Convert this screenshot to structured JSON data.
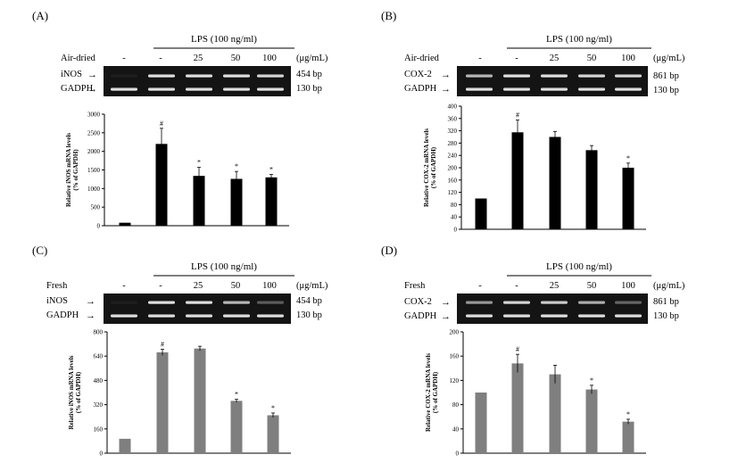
{
  "lps_label": "LPS (100 ng/ml)",
  "unit_label": "(μg/mL)",
  "dose_labels": [
    "-",
    "-",
    "25",
    "50",
    "100"
  ],
  "loading_control": "GADPH",
  "loading_bp": "130 bp",
  "colors": {
    "black_bar": "#000000",
    "gray_bar": "#7f7f7f",
    "gel_bg": "#141414"
  },
  "panels": [
    {
      "label": "(A)",
      "condition": "Air-dried",
      "gene": "iNOS",
      "gene_bp": "454 bp",
      "band_intensity": [
        0.05,
        1.0,
        1.0,
        1.0,
        0.95
      ]
    },
    {
      "label": "(B)",
      "condition": "Air-dried",
      "gene": "COX-2",
      "gene_bp": "861 bp",
      "band_intensity": [
        0.8,
        1.0,
        1.0,
        0.95,
        0.95
      ]
    },
    {
      "label": "(C)",
      "condition": "Fresh",
      "gene": "iNOS",
      "gene_bp": "454 bp",
      "band_intensity": [
        0.05,
        1.0,
        1.0,
        0.8,
        0.35
      ]
    },
    {
      "label": "(D)",
      "condition": "Fresh",
      "gene": "COX-2",
      "gene_bp": "861 bp",
      "band_intensity": [
        0.65,
        0.95,
        0.9,
        0.75,
        0.4
      ]
    }
  ],
  "chart_data": [
    {
      "type": "bar",
      "ylabel": "Relative iNOS mRNA levels (% of GAPDH)",
      "ylim": [
        0,
        3000
      ],
      "yticks": [
        "0",
        "500",
        "1000",
        "1500",
        "2000",
        "2500",
        "3000"
      ],
      "ytick_values": [
        0,
        500,
        1000,
        1500,
        2000,
        2500,
        3000
      ],
      "values": [
        80,
        2200,
        1340,
        1260,
        1300
      ],
      "errors": [
        0,
        420,
        230,
        200,
        80
      ],
      "marks": [
        "",
        "#",
        "*",
        "*",
        "*"
      ],
      "bar_color": "#000000"
    },
    {
      "type": "bar",
      "ylabel": "Relative COX-2 mRNA levels (% of GAPDH)",
      "ylim": [
        0,
        400
      ],
      "yticks": [
        "0",
        "40",
        "80",
        "120",
        "160",
        "200",
        "240",
        "280",
        "320",
        "360",
        "400"
      ],
      "ytick_values": [
        0,
        40,
        80,
        120,
        160,
        200,
        240,
        280,
        320,
        360,
        400
      ],
      "values": [
        100,
        315,
        300,
        257,
        200
      ],
      "errors": [
        0,
        40,
        18,
        15,
        15
      ],
      "marks": [
        "",
        "#",
        "",
        "",
        "*"
      ],
      "bar_color": "#000000"
    },
    {
      "type": "bar",
      "ylabel": "Relative iNOS mRNA levels (% of GAPDH)",
      "ylim": [
        0,
        800
      ],
      "yticks": [
        "0",
        "160",
        "320",
        "480",
        "640",
        "800"
      ],
      "ytick_values": [
        0,
        160,
        320,
        480,
        640,
        800
      ],
      "values": [
        95,
        665,
        690,
        345,
        250
      ],
      "errors": [
        0,
        20,
        15,
        10,
        15
      ],
      "marks": [
        "",
        "#",
        "",
        "*",
        "*"
      ],
      "bar_color": "#7f7f7f"
    },
    {
      "type": "bar",
      "ylabel": "Relative COX-2 mRNA levels (% of GAPDH)",
      "ylim": [
        0,
        200
      ],
      "yticks": [
        "0",
        "40",
        "80",
        "120",
        "160",
        "200"
      ],
      "ytick_values": [
        0,
        40,
        80,
        120,
        160,
        200
      ],
      "values": [
        100,
        148,
        130,
        105,
        52
      ],
      "errors": [
        0,
        15,
        15,
        7,
        4
      ],
      "marks": [
        "",
        "#",
        "",
        "*",
        "*"
      ],
      "bar_color": "#7f7f7f"
    }
  ]
}
